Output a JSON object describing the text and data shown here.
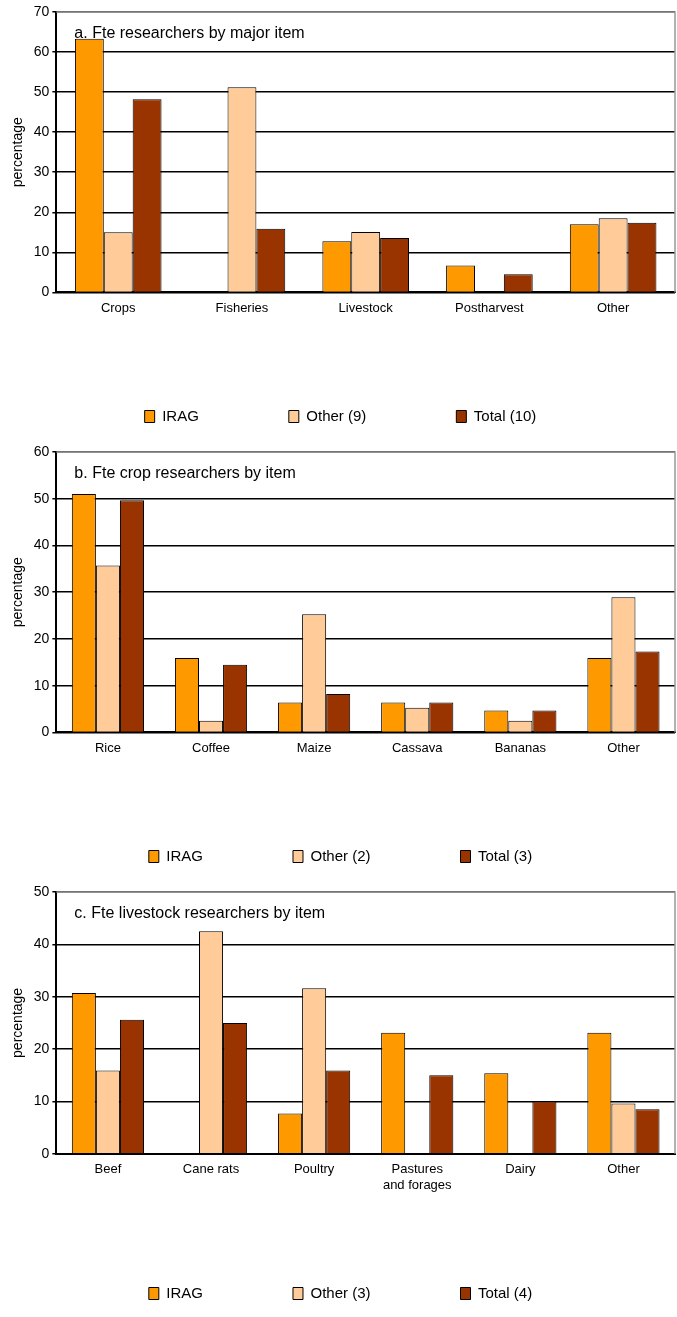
{
  "chart_data": [
    {
      "type": "bar",
      "title": "a. Fte researchers by major item",
      "ylabel": "percentage",
      "categories": [
        "Crops",
        "Fisheries",
        "Livestock",
        "Postharvest",
        "Other"
      ],
      "series": [
        {
          "name": "IRAG",
          "color": "#ff9900",
          "values": [
            63.3,
            0,
            12.8,
            6.7,
            17.0
          ]
        },
        {
          "name": "Other (9)",
          "color": "#ffcc99",
          "values": [
            15.0,
            51.2,
            15.1,
            0,
            18.5
          ]
        },
        {
          "name": "Total (10)",
          "color": "#993300",
          "values": [
            48.2,
            15.9,
            13.6,
            4.5,
            17.4
          ]
        }
      ],
      "ylim": [
        0,
        70
      ],
      "yticks": [
        0,
        10,
        20,
        30,
        40,
        50,
        60,
        70
      ],
      "grid": "y",
      "legend": "bottom"
    },
    {
      "type": "bar",
      "title": "b. Fte crop researchers by item",
      "ylabel": "percentage",
      "categories": [
        "Rice",
        "Coffee",
        "Maize",
        "Cassava",
        "Bananas",
        "Other"
      ],
      "series": [
        {
          "name": "IRAG",
          "color": "#ff9900",
          "values": [
            51.0,
            15.9,
            6.4,
            6.4,
            4.7,
            15.9
          ]
        },
        {
          "name": "Other (2)",
          "color": "#ffcc99",
          "values": [
            35.7,
            2.5,
            25.3,
            5.3,
            2.5,
            28.9
          ]
        },
        {
          "name": "Total (3)",
          "color": "#993300",
          "values": [
            49.7,
            14.5,
            8.2,
            6.4,
            4.7,
            17.3
          ]
        }
      ],
      "ylim": [
        0,
        60
      ],
      "yticks": [
        0,
        10,
        20,
        30,
        40,
        50,
        60
      ],
      "grid": "y",
      "legend": "bottom"
    },
    {
      "type": "bar",
      "title": "c. Fte livestock researchers by item",
      "ylabel": "percentage",
      "categories": [
        "Beef",
        "Cane rats",
        "Poultry",
        "Pastures and forages",
        "Dairy",
        "Other"
      ],
      "series": [
        {
          "name": "IRAG",
          "color": "#ff9900",
          "values": [
            30.7,
            0,
            7.7,
            23.1,
            15.4,
            23.1
          ]
        },
        {
          "name": "Other (3)",
          "color": "#ffcc99",
          "values": [
            15.9,
            42.5,
            31.6,
            0,
            0,
            9.6
          ]
        },
        {
          "name": "Total (4)",
          "color": "#993300",
          "values": [
            25.6,
            25.0,
            15.9,
            15.0,
            10.0,
            8.5
          ]
        }
      ],
      "ylim": [
        0,
        50
      ],
      "yticks": [
        0,
        10,
        20,
        30,
        40,
        50
      ],
      "grid": "y",
      "legend": "bottom"
    }
  ]
}
